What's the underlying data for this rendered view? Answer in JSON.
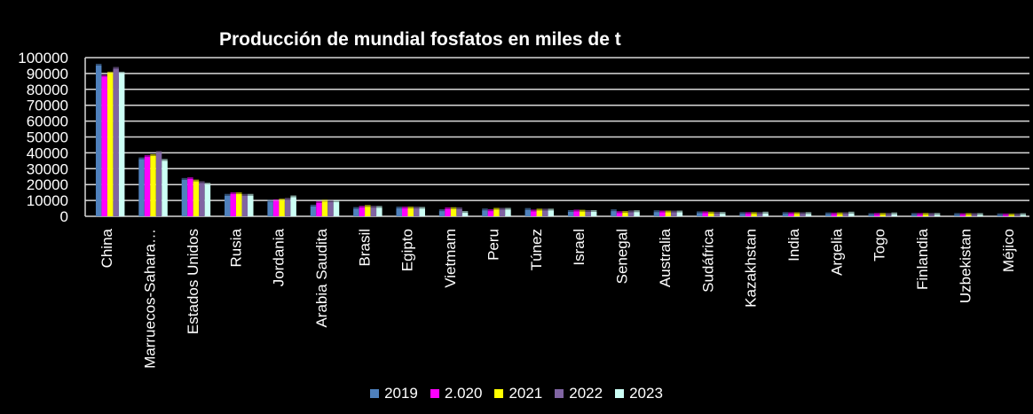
{
  "chart_data": {
    "type": "bar",
    "title": "Producción de mundial fosfatos en miles de t",
    "xlabel": "",
    "ylabel": "",
    "ylim": [
      0,
      100000
    ],
    "yticks": [
      "0",
      "10000",
      "20000",
      "30000",
      "40000",
      "50000",
      "60000",
      "70000",
      "80000",
      "90000",
      "100000"
    ],
    "grid": true,
    "legend_position": "bottom",
    "categories": [
      "China",
      "Marruecos-Sahara…",
      "Estados Unidos",
      "Rusia",
      "Jordania",
      "Arabia Saudita",
      "Brasil",
      "Egipto",
      "Vietmam",
      "Peru",
      "Túnez",
      "Israel",
      "Senegal",
      "Australia",
      "Sudáfrica",
      "Kazakhstan",
      "India",
      "Argelia",
      "Togo",
      "Finlandia",
      "Uzbekistan",
      "Méjico"
    ],
    "series": [
      {
        "name": "2019",
        "color": "#4f81bd",
        "values": [
          95000,
          36000,
          23000,
          13000,
          9200,
          6200,
          4700,
          5000,
          3300,
          3800,
          4100,
          2800,
          3300,
          2700,
          2000,
          1500,
          1500,
          1300,
          850,
          950,
          900,
          700
        ]
      },
      {
        "name": "2.020",
        "color": "#ff00ff",
        "values": [
          88000,
          37400,
          23500,
          14000,
          9500,
          8400,
          5500,
          5000,
          4500,
          3300,
          3100,
          3100,
          2100,
          2500,
          2000,
          1500,
          1400,
          1200,
          1000,
          950,
          800,
          650
        ]
      },
      {
        "name": "2021",
        "color": "#ffff00",
        "values": [
          90000,
          38000,
          22000,
          14000,
          10000,
          9300,
          6000,
          5000,
          4600,
          4200,
          3700,
          3000,
          2200,
          2500,
          1800,
          1500,
          1400,
          1300,
          1000,
          1000,
          900,
          600
        ]
      },
      {
        "name": "2022",
        "color": "#8064a2",
        "values": [
          93000,
          40000,
          21000,
          13000,
          10500,
          9000,
          5500,
          5000,
          4500,
          4200,
          3700,
          2800,
          2600,
          2500,
          1700,
          1500,
          1400,
          1400,
          1000,
          1000,
          900,
          650
        ]
      },
      {
        "name": "2023",
        "color": "#ccfff5",
        "values": [
          90000,
          35000,
          20000,
          13000,
          12000,
          9000,
          5400,
          4800,
          2200,
          4200,
          3700,
          2800,
          2700,
          2500,
          1600,
          1800,
          1500,
          1800,
          1300,
          1000,
          900,
          800
        ]
      }
    ]
  }
}
